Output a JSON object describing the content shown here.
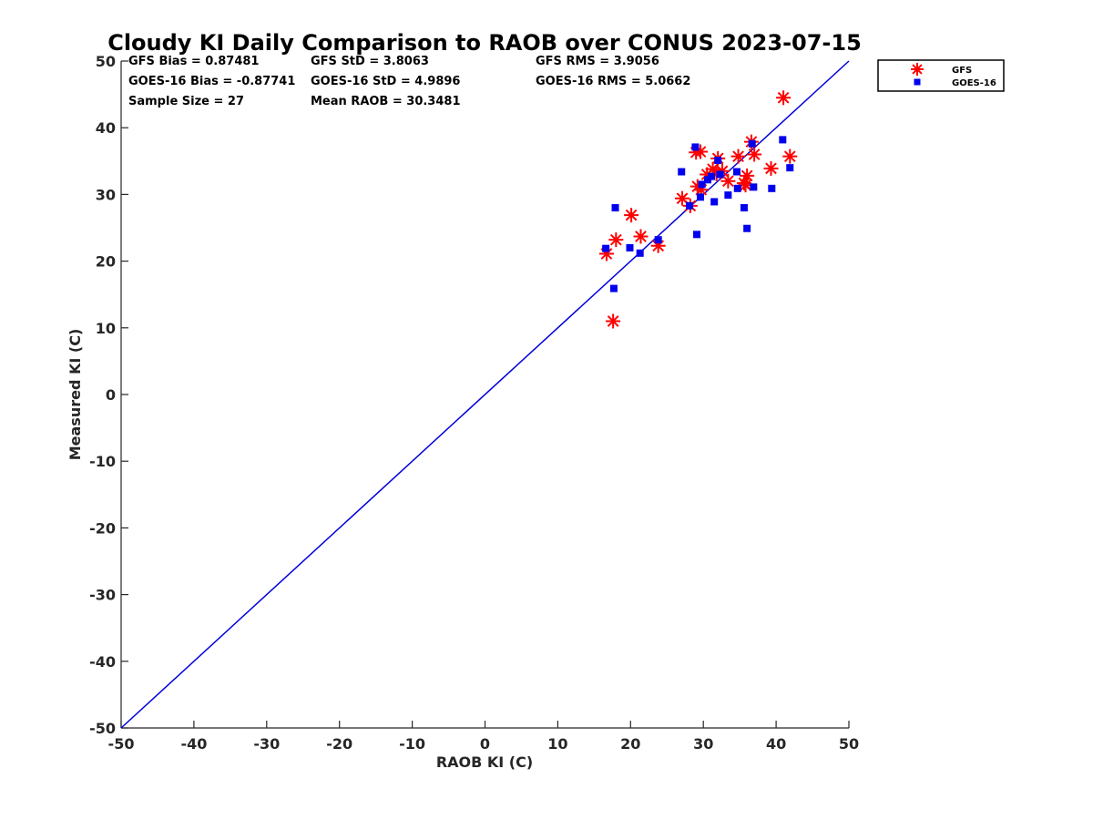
{
  "chart_data": {
    "type": "scatter",
    "title": "Cloudy KI Daily Comparison to RAOB over CONUS 2023-07-15",
    "xlabel": "RAOB KI (C)",
    "ylabel": "Measured KI (C)",
    "xlim": [
      -50,
      50
    ],
    "ylim": [
      -50,
      50
    ],
    "xticks": [
      "-50",
      "-40",
      "-30",
      "-20",
      "-10",
      "0",
      "10",
      "20",
      "30",
      "40",
      "50"
    ],
    "yticks": [
      "-50",
      "-40",
      "-30",
      "-20",
      "-10",
      "0",
      "10",
      "20",
      "30",
      "40",
      "50"
    ],
    "grid": false,
    "legend_position": "outside-top-right",
    "reference_line": {
      "from": [
        -50,
        -50
      ],
      "to": [
        50,
        50
      ],
      "color": "#0000dd"
    },
    "stats": [
      "GFS Bias = 0.87481",
      "GFS StD = 3.8063",
      "GFS RMS = 3.9056",
      "GOES-16 Bias = -0.87741",
      "GOES-16 StD = 4.9896",
      "GOES-16 RMS = 5.0662",
      "Sample Size = 27",
      "Mean RAOB = 30.3481"
    ],
    "series": [
      {
        "name": "GFS",
        "marker": "asterisk",
        "color": "#ff0000",
        "points": [
          [
            16.7,
            21.1
          ],
          [
            18.0,
            23.2
          ],
          [
            17.6,
            11.0
          ],
          [
            20.1,
            26.9
          ],
          [
            21.4,
            23.7
          ],
          [
            23.8,
            22.3
          ],
          [
            27.1,
            29.4
          ],
          [
            28.2,
            28.3
          ],
          [
            29.2,
            31.2
          ],
          [
            29.7,
            30.7
          ],
          [
            29.0,
            36.3
          ],
          [
            29.6,
            36.4
          ],
          [
            30.5,
            33.0
          ],
          [
            31.3,
            33.8
          ],
          [
            32.0,
            35.4
          ],
          [
            32.6,
            33.5
          ],
          [
            33.4,
            32.0
          ],
          [
            34.8,
            35.7
          ],
          [
            35.6,
            31.7
          ],
          [
            36.0,
            32.8
          ],
          [
            36.6,
            37.9
          ],
          [
            37.0,
            36.0
          ],
          [
            39.3,
            33.9
          ],
          [
            41.0,
            44.5
          ],
          [
            41.9,
            35.7
          ],
          [
            35.8,
            31.4
          ],
          [
            31.8,
            33.1
          ]
        ]
      },
      {
        "name": "GOES-16",
        "marker": "square",
        "color": "#0000ee",
        "points": [
          [
            16.6,
            21.9
          ],
          [
            17.7,
            15.9
          ],
          [
            17.9,
            28.0
          ],
          [
            19.9,
            22.0
          ],
          [
            21.3,
            21.2
          ],
          [
            23.8,
            23.2
          ],
          [
            27.0,
            33.4
          ],
          [
            28.1,
            28.3
          ],
          [
            28.9,
            37.1
          ],
          [
            29.1,
            24.0
          ],
          [
            29.6,
            29.6
          ],
          [
            29.8,
            31.5
          ],
          [
            30.6,
            32.2
          ],
          [
            31.1,
            32.7
          ],
          [
            31.5,
            28.9
          ],
          [
            32.0,
            35.1
          ],
          [
            32.3,
            33.0
          ],
          [
            33.4,
            29.9
          ],
          [
            34.6,
            33.4
          ],
          [
            34.7,
            30.9
          ],
          [
            35.6,
            28.0
          ],
          [
            36.0,
            24.9
          ],
          [
            36.7,
            37.6
          ],
          [
            36.9,
            31.1
          ],
          [
            39.4,
            30.9
          ],
          [
            40.9,
            38.2
          ],
          [
            41.9,
            34.0
          ]
        ]
      }
    ]
  }
}
